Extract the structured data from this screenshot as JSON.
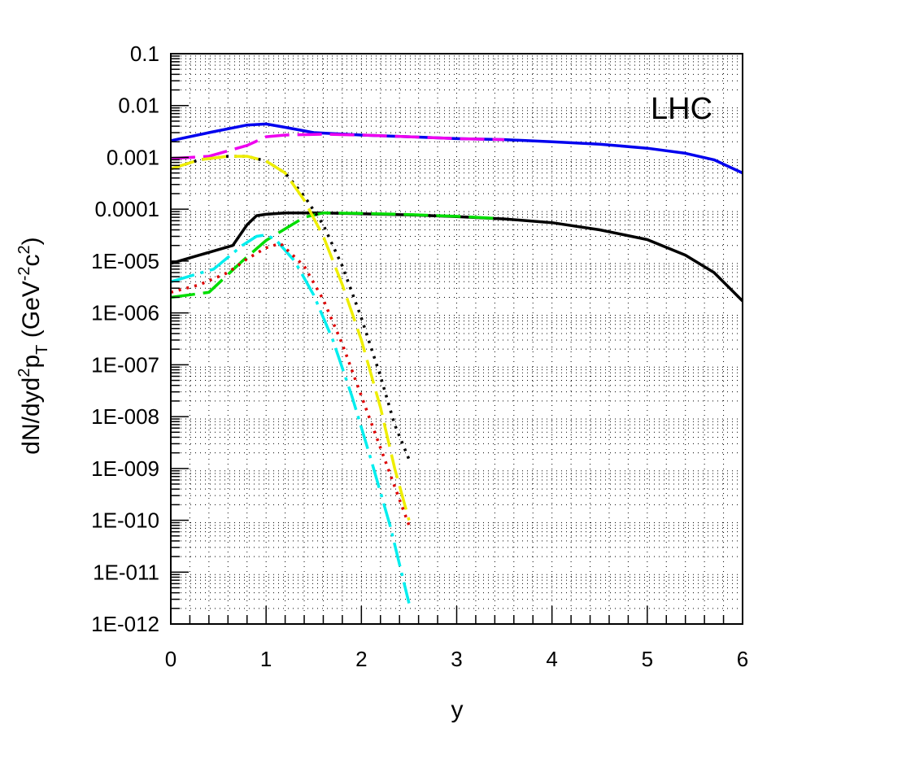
{
  "chart_data": {
    "type": "line",
    "title": "",
    "annotation": "LHC",
    "xlabel": "y",
    "ylabel_main": "dN/dyd",
    "ylabel_sup1": "2",
    "ylabel_p": "p",
    "ylabel_sub": "T",
    "ylabel_paren_open": " (GeV",
    "ylabel_sup2": "-2",
    "ylabel_c": "c",
    "ylabel_sup3": "2",
    "ylabel_paren_close": ")",
    "xlim": [
      0,
      6
    ],
    "ylim": [
      1e-12,
      0.1
    ],
    "yscale": "log",
    "grid": true,
    "x_ticks": [
      "0",
      "1",
      "2",
      "3",
      "4",
      "5",
      "6"
    ],
    "y_ticks": [
      "1E-012",
      "1E-011",
      "1E-010",
      "1E-009",
      "1E-008",
      "1E-007",
      "1E-006",
      "1E-005",
      "0.0001",
      "0.001",
      "0.01",
      "0.1"
    ],
    "series": [
      {
        "color": "#0000ee",
        "style": "solid",
        "x": [
          0,
          0.4,
          0.8,
          1.0,
          1.2,
          1.5,
          2.0,
          2.5,
          3.0,
          3.5,
          4.0,
          4.5,
          5.0,
          5.4,
          5.7,
          6.0
        ],
        "y": [
          0.0021,
          0.003,
          0.0042,
          0.0044,
          0.0038,
          0.003,
          0.0027,
          0.0025,
          0.0023,
          0.0022,
          0.002,
          0.0018,
          0.0015,
          0.0012,
          0.0009,
          0.0005
        ]
      },
      {
        "color": "#ee00ee",
        "style": "longdash",
        "x": [
          0,
          0.2,
          0.4,
          0.8,
          1.0,
          1.2,
          1.6,
          2.0,
          2.5,
          3.0,
          3.5
        ],
        "y": [
          0.00095,
          0.001,
          0.00105,
          0.0017,
          0.0025,
          0.0027,
          0.0028,
          0.0027,
          0.0025,
          0.0023,
          0.0022
        ]
      },
      {
        "color": "#000000",
        "style": "solid",
        "x": [
          0,
          0.3,
          0.65,
          0.8,
          0.9,
          1.0,
          1.2,
          1.6,
          2.0,
          2.5,
          3.0,
          3.5,
          4.0,
          4.5,
          5.0,
          5.4,
          5.7,
          6.0
        ],
        "y": [
          9e-06,
          1.3e-05,
          2e-05,
          5e-05,
          7.5e-05,
          8e-05,
          8.5e-05,
          8.5e-05,
          8.2e-05,
          7.8e-05,
          7.2e-05,
          6.5e-05,
          5.5e-05,
          4e-05,
          2.6e-05,
          1.3e-05,
          6e-06,
          1.7e-06
        ]
      },
      {
        "color": "#00dd00",
        "style": "longdash",
        "x": [
          0,
          0.4,
          0.75,
          1.0,
          1.4,
          1.6,
          2.0,
          2.5,
          3.0,
          3.4
        ],
        "y": [
          2e-06,
          2.5e-06,
          1e-05,
          2.5e-05,
          7e-05,
          8.5e-05,
          8.3e-05,
          7.9e-05,
          7.3e-05,
          6.7e-05
        ]
      },
      {
        "color": "#000000",
        "style": "dotted",
        "x": [
          0,
          0.3,
          0.6,
          0.8,
          1.0,
          1.2,
          1.4,
          1.6,
          1.8,
          2.0,
          2.2,
          2.35,
          2.5
        ],
        "y": [
          0.0006,
          0.0009,
          0.00105,
          0.00105,
          0.00085,
          0.0005,
          0.00018,
          5e-05,
          8e-06,
          8e-07,
          6e-08,
          7e-09,
          1.5e-09
        ]
      },
      {
        "color": "#eeee00",
        "style": "longdash",
        "x": [
          0,
          0.3,
          0.6,
          0.8,
          1.0,
          1.2,
          1.4,
          1.6,
          1.8,
          2.0,
          2.2,
          2.35,
          2.5
        ],
        "y": [
          0.0006,
          0.0009,
          0.00105,
          0.00105,
          0.00085,
          0.0005,
          0.00015,
          3e-05,
          3.5e-06,
          3e-07,
          1.5e-08,
          1e-09,
          1e-10
        ]
      },
      {
        "color": "#00eeee",
        "style": "dashdot",
        "x": [
          0,
          0.45,
          0.75,
          0.9,
          1.0,
          1.1,
          1.3,
          1.5,
          1.7,
          1.9,
          2.1,
          2.3,
          2.5
        ],
        "y": [
          4e-06,
          7e-06,
          2e-05,
          3e-05,
          3.2e-05,
          2.6e-05,
          1e-05,
          2.2e-06,
          3e-07,
          2.5e-08,
          1.5e-09,
          8e-11,
          2.5e-12
        ]
      },
      {
        "color": "#dd0000",
        "style": "dotted",
        "x": [
          0,
          0.3,
          0.6,
          0.8,
          1.0,
          1.15,
          1.4,
          1.6,
          1.8,
          2.0,
          2.2,
          2.4,
          2.5
        ],
        "y": [
          2.5e-06,
          3.5e-06,
          6e-06,
          1.1e-05,
          1.8e-05,
          2.2e-05,
          8e-06,
          1.8e-06,
          2.5e-07,
          2.5e-08,
          2.5e-09,
          2.5e-10,
          8e-11
        ]
      }
    ]
  }
}
